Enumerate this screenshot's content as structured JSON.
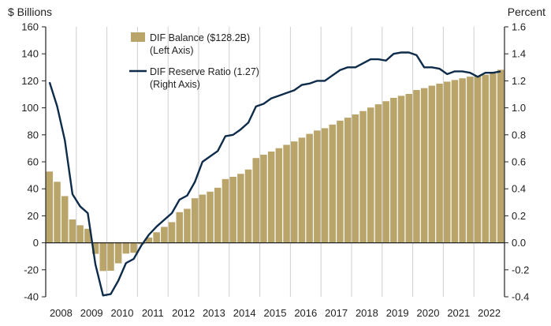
{
  "chart_data": {
    "type": "bar+line",
    "left_axis": {
      "label": "$ Billions",
      "range": [
        -40,
        160
      ],
      "ticks": [
        -40,
        -20,
        0,
        20,
        40,
        60,
        80,
        100,
        120,
        140,
        160
      ],
      "tick_labels": [
        "-40",
        "-20",
        "0",
        "20",
        "40",
        "60",
        "80",
        "100",
        "120",
        "140",
        "160"
      ]
    },
    "right_axis": {
      "label": "Percent",
      "range": [
        -0.4,
        1.6
      ],
      "ticks": [
        -0.4,
        -0.2,
        0.0,
        0.2,
        0.4,
        0.6,
        0.8,
        1.0,
        1.2,
        1.4,
        1.6
      ],
      "tick_labels": [
        "-0.4",
        "-0.2",
        "0.0",
        "0.2",
        "0.4",
        "0.6",
        "0.8",
        "1.0",
        "1.2",
        "1.4",
        "1.6"
      ]
    },
    "x_axis": {
      "tick_labels": [
        "2008",
        "2009",
        "2010",
        "2011",
        "2012",
        "2013",
        "2014",
        "2015",
        "2016",
        "2017",
        "2018",
        "2019",
        "2020",
        "2021",
        "2022"
      ]
    },
    "grid": "vertical lines at year boundaries",
    "legend": {
      "placement": "top-center",
      "entries": [
        {
          "line1": "DIF Balance ($128.2B)",
          "line2": "(Left Axis)",
          "symbol": "bar"
        },
        {
          "line1": "DIF Reserve Ratio (1.27)",
          "line2": "(Right Axis)",
          "symbol": "line"
        }
      ]
    },
    "colors": {
      "bar": "#B9A46A",
      "line": "#0E2C4A",
      "grid": "#cfcfcf",
      "axis": "#222222"
    },
    "periods": [
      "2008Q1",
      "2008Q2",
      "2008Q3",
      "2008Q4",
      "2009Q1",
      "2009Q2",
      "2009Q3",
      "2009Q4",
      "2010Q1",
      "2010Q2",
      "2010Q3",
      "2010Q4",
      "2011Q1",
      "2011Q2",
      "2011Q3",
      "2011Q4",
      "2012Q1",
      "2012Q2",
      "2012Q3",
      "2012Q4",
      "2013Q1",
      "2013Q2",
      "2013Q3",
      "2013Q4",
      "2014Q1",
      "2014Q2",
      "2014Q3",
      "2014Q4",
      "2015Q1",
      "2015Q2",
      "2015Q3",
      "2015Q4",
      "2016Q1",
      "2016Q2",
      "2016Q3",
      "2016Q4",
      "2017Q1",
      "2017Q2",
      "2017Q3",
      "2017Q4",
      "2018Q1",
      "2018Q2",
      "2018Q3",
      "2018Q4",
      "2019Q1",
      "2019Q2",
      "2019Q3",
      "2019Q4",
      "2020Q1",
      "2020Q2",
      "2020Q3",
      "2020Q4",
      "2021Q1",
      "2021Q2",
      "2021Q3",
      "2021Q4",
      "2022Q1",
      "2022Q2",
      "2022Q3",
      "2022Q4"
    ],
    "series": [
      {
        "name": "DIF Balance ($128.2B)",
        "axis": "left",
        "type": "bar",
        "values": [
          52.8,
          45.2,
          34.6,
          17.3,
          13.0,
          10.4,
          -8.2,
          -20.9,
          -20.7,
          -15.2,
          -8.0,
          -7.4,
          -1.0,
          3.9,
          7.8,
          11.8,
          15.3,
          22.7,
          25.2,
          33.0,
          35.7,
          37.9,
          40.8,
          47.2,
          48.9,
          51.1,
          54.3,
          62.8,
          65.3,
          67.6,
          70.1,
          72.6,
          75.1,
          77.9,
          80.7,
          83.2,
          84.9,
          87.6,
          90.5,
          92.7,
          95.1,
          97.6,
          100.2,
          102.6,
          104.9,
          107.4,
          108.9,
          110.3,
          113.2,
          114.6,
          116.4,
          117.9,
          119.4,
          120.6,
          121.9,
          123.1,
          123.7,
          124.5,
          125.5,
          128.2
        ]
      },
      {
        "name": "DIF Reserve Ratio (1.27)",
        "axis": "right",
        "type": "line",
        "values": [
          1.19,
          1.01,
          0.76,
          0.36,
          0.27,
          0.22,
          -0.16,
          -0.39,
          -0.38,
          -0.28,
          -0.15,
          -0.12,
          -0.02,
          0.06,
          0.12,
          0.17,
          0.22,
          0.32,
          0.35,
          0.45,
          0.6,
          0.64,
          0.68,
          0.79,
          0.8,
          0.84,
          0.89,
          1.01,
          1.03,
          1.07,
          1.09,
          1.11,
          1.13,
          1.17,
          1.18,
          1.2,
          1.2,
          1.24,
          1.28,
          1.3,
          1.3,
          1.33,
          1.36,
          1.36,
          1.35,
          1.4,
          1.41,
          1.41,
          1.39,
          1.3,
          1.3,
          1.29,
          1.25,
          1.27,
          1.27,
          1.26,
          1.23,
          1.26,
          1.26,
          1.27
        ]
      }
    ]
  }
}
